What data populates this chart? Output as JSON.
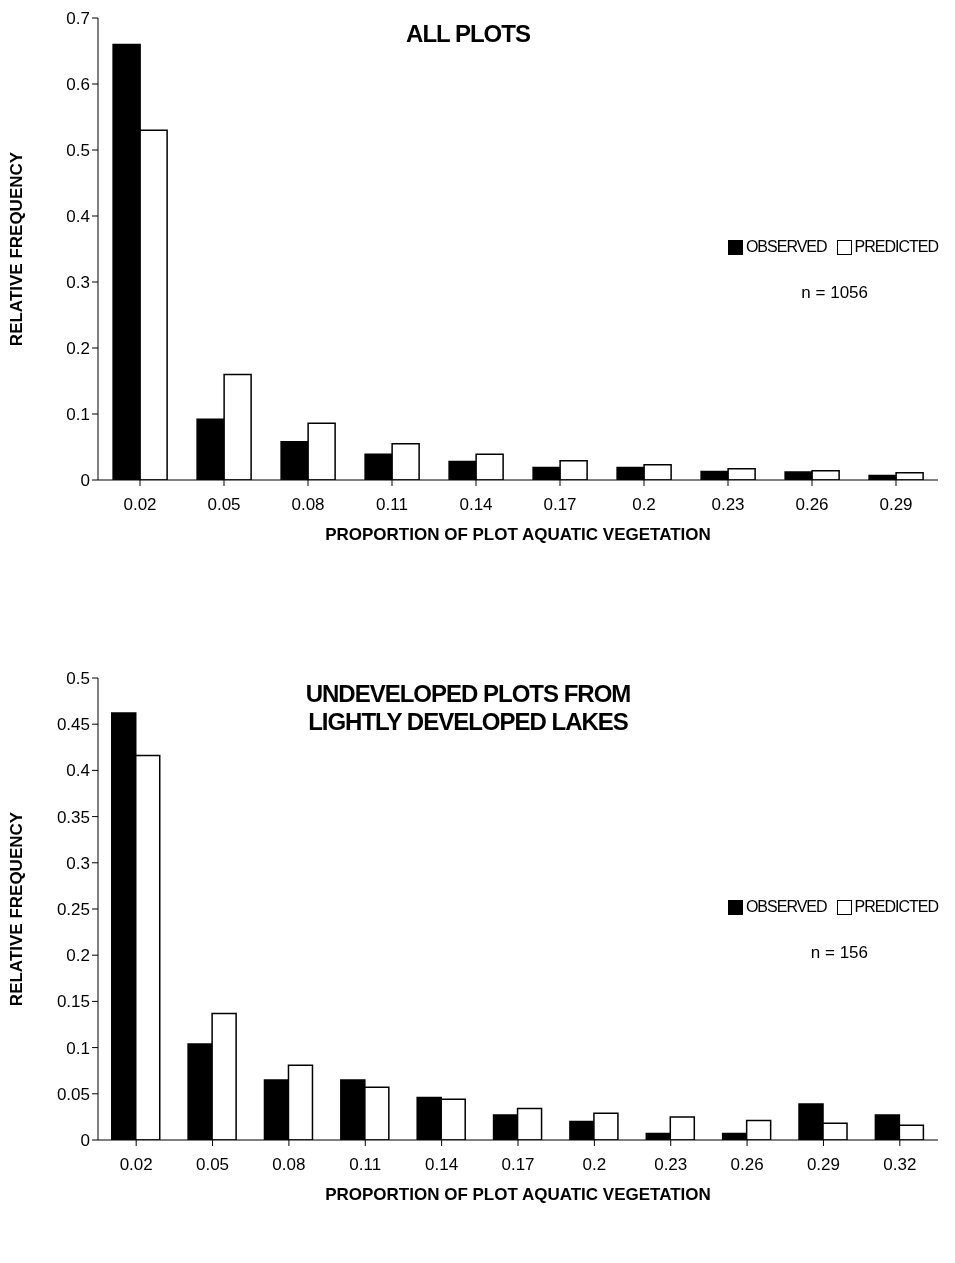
{
  "chart_data": [
    {
      "type": "bar",
      "title": "ALL PLOTS",
      "xlabel": "PROPORTION OF PLOT AQUATIC VEGETATION",
      "ylabel": "RELATIVE FREQUENCY",
      "categories": [
        "0.02",
        "0.05",
        "0.08",
        "0.11",
        "0.14",
        "0.17",
        "0.2",
        "0.23",
        "0.26",
        "0.29"
      ],
      "series": [
        {
          "name": "OBSERVED",
          "color": "#000000",
          "values": [
            0.66,
            0.092,
            0.058,
            0.039,
            0.028,
            0.019,
            0.019,
            0.013,
            0.012,
            0.007
          ]
        },
        {
          "name": "PREDICTED",
          "color": "#ffffff",
          "values": [
            0.53,
            0.16,
            0.086,
            0.055,
            0.039,
            0.029,
            0.023,
            0.017,
            0.014,
            0.011
          ]
        }
      ],
      "ylim": [
        0,
        0.7
      ],
      "yticks": [
        0,
        0.1,
        0.2,
        0.3,
        0.4,
        0.5,
        0.6,
        0.7
      ],
      "grid": false,
      "legend": "right",
      "annotations": [
        "n = 1056"
      ]
    },
    {
      "type": "bar",
      "title": "UNDEVELOPED PLOTS FROM LIGHTLY DEVELOPED LAKES",
      "xlabel": "PROPORTION OF PLOT AQUATIC VEGETATION",
      "ylabel": "RELATIVE FREQUENCY",
      "categories": [
        "0.02",
        "0.05",
        "0.08",
        "0.11",
        "0.14",
        "0.17",
        "0.2",
        "0.23",
        "0.26",
        "0.29",
        "0.32"
      ],
      "series": [
        {
          "name": "OBSERVED",
          "color": "#000000",
          "values": [
            0.462,
            0.104,
            0.065,
            0.065,
            0.046,
            0.027,
            0.02,
            0.007,
            0.007,
            0.039,
            0.027
          ]
        },
        {
          "name": "PREDICTED",
          "color": "#ffffff",
          "values": [
            0.416,
            0.137,
            0.081,
            0.057,
            0.044,
            0.034,
            0.029,
            0.025,
            0.021,
            0.018,
            0.016
          ]
        }
      ],
      "ylim": [
        0,
        0.5
      ],
      "yticks": [
        0,
        0.05,
        0.1,
        0.15,
        0.2,
        0.25,
        0.3,
        0.35,
        0.4,
        0.45,
        0.5
      ],
      "grid": false,
      "legend": "right",
      "annotations": [
        "n = 156"
      ]
    }
  ]
}
